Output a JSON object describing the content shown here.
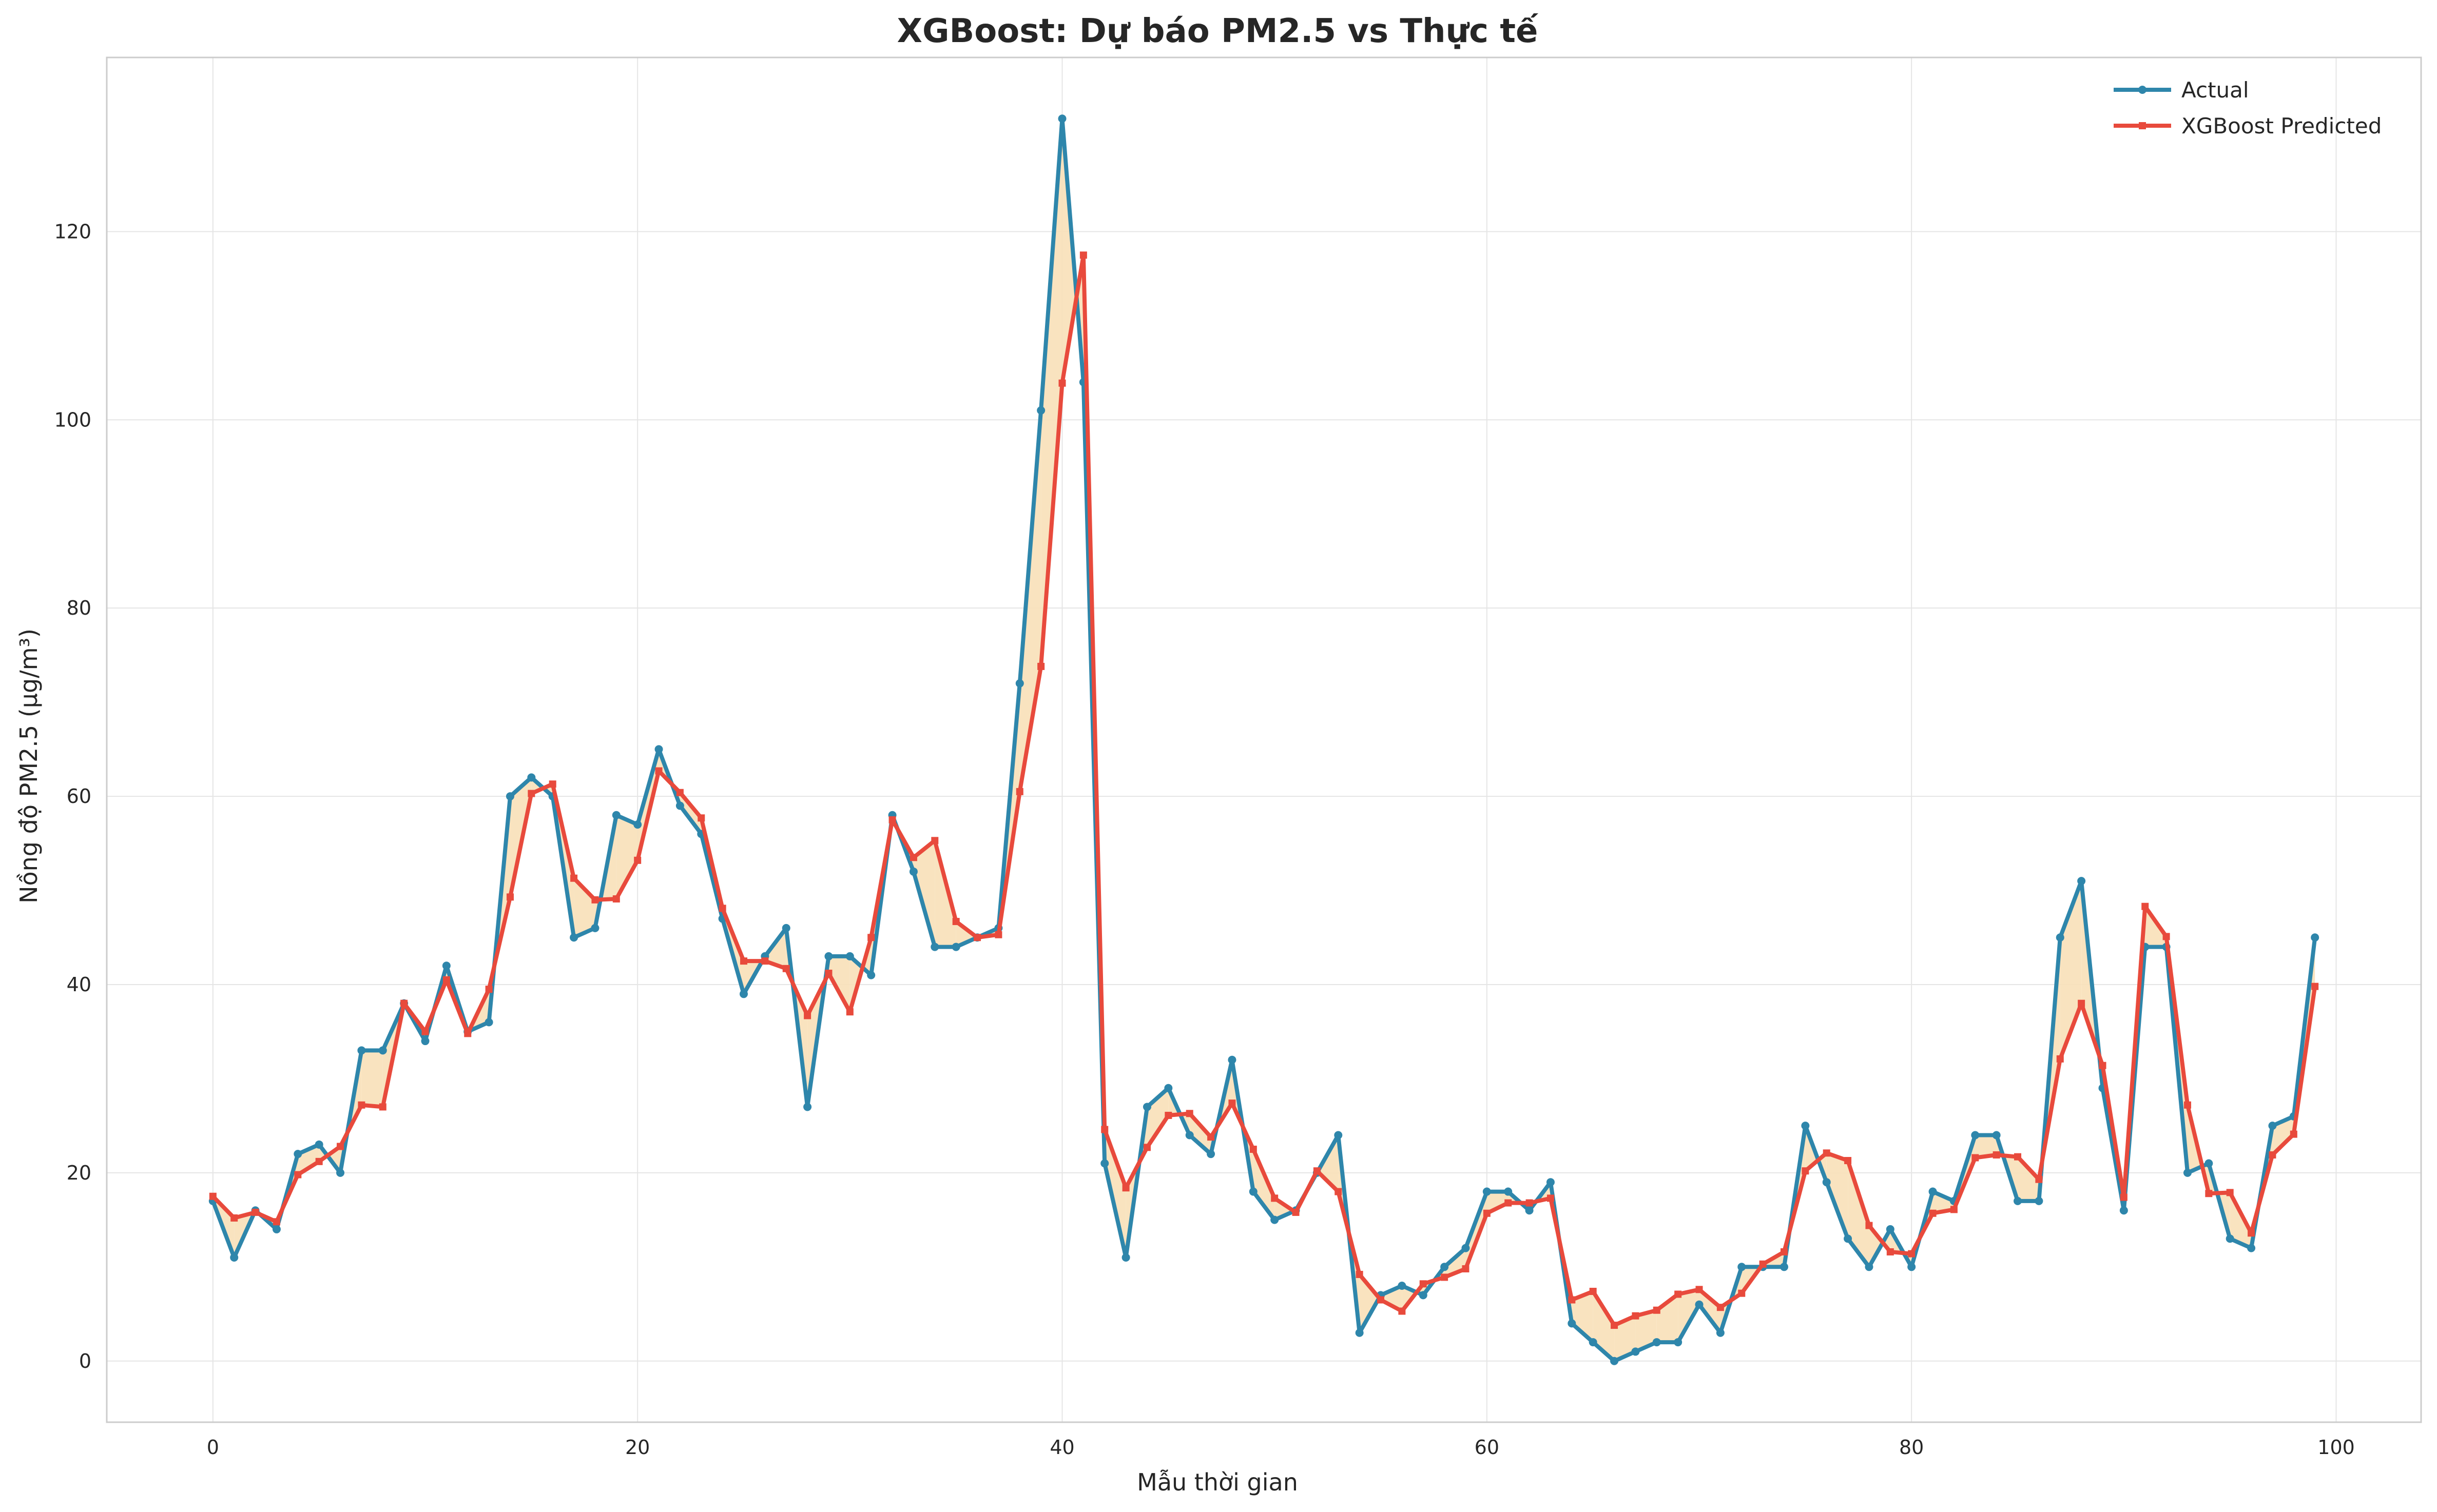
{
  "chart_data": {
    "type": "line",
    "title": "XGBoost: Dự báo PM2.5 vs Thực tế",
    "xlabel": "Mẫu thời gian",
    "ylabel": "Nồng độ PM2.5 (µg/m³)",
    "xlim": [
      -5,
      104
    ],
    "ylim": [
      -6.5,
      138.5
    ],
    "xticks": [
      0,
      20,
      40,
      60,
      80,
      100
    ],
    "yticks": [
      0,
      20,
      40,
      60,
      80,
      100,
      120
    ],
    "grid": true,
    "legend_position": "top-right",
    "fill_between": true,
    "fill_color": "#f8e0b8",
    "series": [
      {
        "name": "Actual",
        "color": "#2e86ab",
        "marker": "circle",
        "values": [
          17,
          11,
          16,
          14,
          22,
          23,
          20,
          33,
          33,
          38,
          34,
          42,
          35,
          36,
          60,
          62,
          60,
          45,
          46,
          58,
          57,
          65,
          59,
          56,
          47,
          39,
          43,
          46,
          27,
          43,
          43,
          41,
          58,
          52,
          44,
          44,
          45,
          46,
          72,
          101,
          132,
          104,
          21,
          11,
          27,
          29,
          24,
          22,
          32,
          18,
          15,
          16,
          20,
          24,
          3,
          7,
          8,
          7,
          10,
          12,
          18,
          18,
          16,
          19,
          4,
          2,
          0,
          1,
          2,
          2,
          6,
          3,
          10,
          10,
          10,
          25,
          19,
          13,
          10,
          14,
          10,
          18,
          17,
          24,
          24,
          17,
          17,
          45,
          51,
          29,
          16,
          44,
          44,
          20,
          21,
          13,
          12,
          25,
          26,
          45
        ]
      },
      {
        "name": "XGBoost Predicted",
        "color": "#e84a3c",
        "marker": "square",
        "values": [
          17.5,
          15.2,
          15.8,
          14.8,
          19.8,
          21.2,
          22.8,
          27.2,
          27,
          38,
          35,
          40.5,
          34.8,
          39.5,
          49.3,
          60.3,
          61.3,
          51.3,
          49,
          49.1,
          53.2,
          62.7,
          60.4,
          57.7,
          48.1,
          42.5,
          42.5,
          41.7,
          36.7,
          41.2,
          37.1,
          45,
          57.5,
          53.5,
          55.3,
          46.7,
          45,
          45.3,
          60.5,
          73.8,
          103.9,
          117.5,
          24.6,
          18.4,
          22.7,
          26.1,
          26.3,
          23.8,
          27.4,
          22.5,
          17.3,
          15.8,
          20.2,
          18,
          9.2,
          6.5,
          5.3,
          8.2,
          8.9,
          9.8,
          15.7,
          16.8,
          16.8,
          17.3,
          6.5,
          7.4,
          3.8,
          4.8,
          5.4,
          7.1,
          7.6,
          5.7,
          7.2,
          10.3,
          11.6,
          20.2,
          22.1,
          21.3,
          14.4,
          11.6,
          11.4,
          15.7,
          16.1,
          21.6,
          21.9,
          21.7,
          19.3,
          32.1,
          38,
          31.4,
          17.4,
          48.3,
          45.1,
          27.2,
          17.8,
          17.9,
          13.6,
          21.9,
          24.1,
          39.8
        ]
      }
    ]
  }
}
